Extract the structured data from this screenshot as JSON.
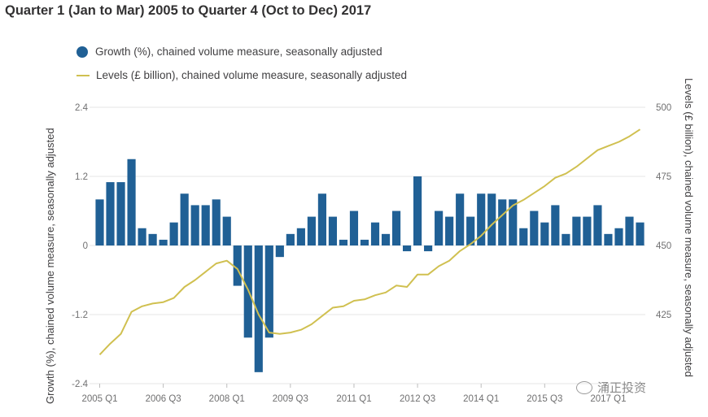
{
  "title": "Quarter 1 (Jan to Mar) 2005 to Quarter 4 (Oct to Dec) 2017",
  "watermark": "涌正投资",
  "colors": {
    "bar": "#206095",
    "line": "#d0c050",
    "grid": "#e6e6e6"
  },
  "chart_data": {
    "type": "bar+line",
    "title": "Quarter 1 (Jan to Mar) 2005 to Quarter 4 (Oct to Dec) 2017",
    "legend": [
      "Growth (%), chained volume measure, seasonally adjusted",
      "Levels (£ billion), chained volume measure, seasonally adjusted"
    ],
    "legend_position": "top-left",
    "ylabel_left": "Growth (%), chained volume measure, seasonally adjusted",
    "ylabel_right": "Levels (£ billion), chained volume measure, seasonally adjusted",
    "ylim_left": [
      -2.4,
      2.4
    ],
    "yticks_left": [
      "2.4",
      "1.2",
      "0",
      "-1.2",
      "-2.4"
    ],
    "ylim_right": [
      400,
      500
    ],
    "yticks_right": [
      "500",
      "475",
      "450",
      "425"
    ],
    "xticks": [
      "2005 Q1",
      "2006 Q3",
      "2008 Q1",
      "2009 Q3",
      "2011 Q1",
      "2012 Q3",
      "2014 Q1",
      "2015 Q3",
      "2017 Q1"
    ],
    "grid": true,
    "categories": [
      "2005 Q1",
      "2005 Q2",
      "2005 Q3",
      "2005 Q4",
      "2006 Q1",
      "2006 Q2",
      "2006 Q3",
      "2006 Q4",
      "2007 Q1",
      "2007 Q2",
      "2007 Q3",
      "2007 Q4",
      "2008 Q1",
      "2008 Q2",
      "2008 Q3",
      "2008 Q4",
      "2009 Q1",
      "2009 Q2",
      "2009 Q3",
      "2009 Q4",
      "2010 Q1",
      "2010 Q2",
      "2010 Q3",
      "2010 Q4",
      "2011 Q1",
      "2011 Q2",
      "2011 Q3",
      "2011 Q4",
      "2012 Q1",
      "2012 Q2",
      "2012 Q3",
      "2012 Q4",
      "2013 Q1",
      "2013 Q2",
      "2013 Q3",
      "2013 Q4",
      "2014 Q1",
      "2014 Q2",
      "2014 Q3",
      "2014 Q4",
      "2015 Q1",
      "2015 Q2",
      "2015 Q3",
      "2015 Q4",
      "2016 Q1",
      "2016 Q2",
      "2016 Q3",
      "2016 Q4",
      "2017 Q1",
      "2017 Q2",
      "2017 Q3",
      "2017 Q4"
    ],
    "series": [
      {
        "name": "Growth (%), chained volume measure, seasonally adjusted",
        "type": "bar",
        "axis": "left",
        "values": [
          0.8,
          1.1,
          1.1,
          1.5,
          0.3,
          0.2,
          0.1,
          0.4,
          0.9,
          0.7,
          0.7,
          0.8,
          0.5,
          -0.7,
          -1.6,
          -2.2,
          -1.6,
          -0.2,
          0.2,
          0.3,
          0.5,
          0.9,
          0.5,
          0.1,
          0.6,
          0.1,
          0.4,
          0.2,
          0.6,
          -0.1,
          1.2,
          -0.1,
          0.6,
          0.5,
          0.9,
          0.5,
          0.9,
          0.9,
          0.8,
          0.8,
          0.3,
          0.6,
          0.4,
          0.7,
          0.2,
          0.5,
          0.5,
          0.7,
          0.2,
          0.3,
          0.5,
          0.4
        ]
      },
      {
        "name": "Levels (£ billion), chained volume measure, seasonally adjusted",
        "type": "line",
        "axis": "right",
        "values": [
          410.5,
          414.5,
          418,
          426,
          428,
          429,
          429.5,
          431,
          435,
          437.5,
          440.5,
          443.5,
          444.5,
          441.5,
          434,
          425,
          418.5,
          418,
          418.5,
          419.5,
          421.5,
          424.5,
          427.5,
          428,
          430,
          430.5,
          432,
          433,
          435.5,
          435,
          439.5,
          439.5,
          442.5,
          444.5,
          448,
          450.5,
          453.5,
          457.5,
          461,
          464.5,
          466.5,
          469,
          471.5,
          474.5,
          476,
          478.5,
          481.5,
          484.5,
          486,
          487.5,
          489.5,
          492
        ]
      }
    ]
  }
}
